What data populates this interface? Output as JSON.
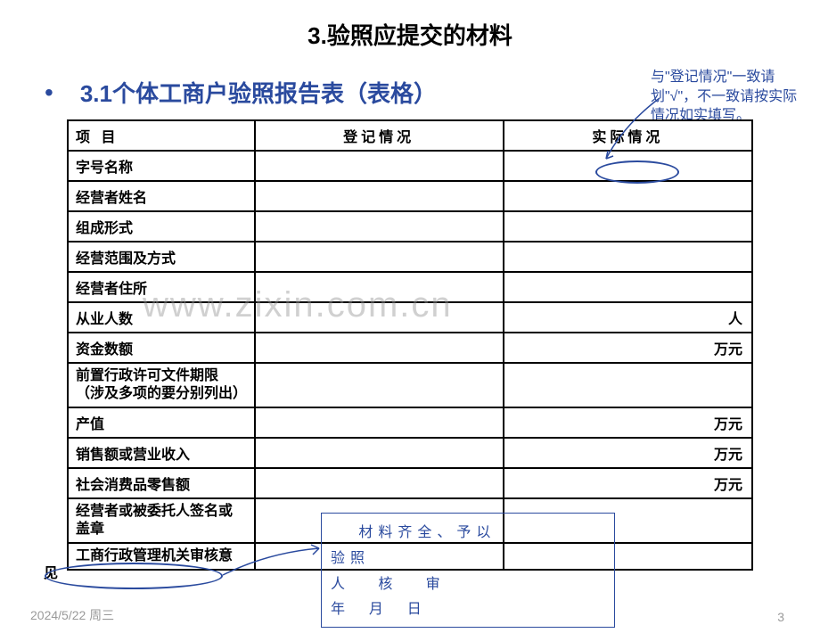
{
  "title": "3.验照应提交的材料",
  "subtitle_num": "3.1",
  "subtitle_text": "个体工商户验照报告表（表格）",
  "annotation_top": "与\"登记情况\"一致请划\"√\"，不一致请按实际情况如实填写。",
  "headers": {
    "col1": "项 目",
    "col2": "登记情况",
    "col3": "实际情况"
  },
  "rows": [
    {
      "label": "字号名称",
      "r_unit": ""
    },
    {
      "label": "经营者姓名",
      "r_unit": ""
    },
    {
      "label": "组成形式",
      "r_unit": ""
    },
    {
      "label": "经营范围及方式",
      "r_unit": ""
    },
    {
      "label": "经营者住所",
      "r_unit": ""
    },
    {
      "label": "从业人数",
      "r_unit": "人"
    },
    {
      "label": "资金数额",
      "r_unit": "万元"
    },
    {
      "label": "前置行政许可文件期限\n（涉及多项的要分别列出）",
      "r_unit": "",
      "twoline": true
    },
    {
      "label": "产值",
      "r_unit": "万元"
    },
    {
      "label": "销售额或营业收入",
      "r_unit": "万元"
    },
    {
      "label": "社会消费品零售额",
      "r_unit": "万元"
    },
    {
      "label": "经营者或被委托人签名或盖章",
      "r_unit": "",
      "twoline": true
    },
    {
      "label": "工商行政管理机关审核意见",
      "r_unit": "",
      "twoline": true,
      "overflow": true
    }
  ],
  "stamp": {
    "l1": "   材料齐全、予以",
    "l2": "验照",
    "l3": "人   核   审",
    "l4": "年  月  日"
  },
  "watermark": "www.zixin.com.cn",
  "footer_date": "2024/5/22 周三",
  "footer_page": "3",
  "colors": {
    "accent": "#2a4a9e",
    "border": "#000000",
    "watermark": "rgba(150,150,150,0.45)",
    "footer": "#9a9a9a"
  }
}
